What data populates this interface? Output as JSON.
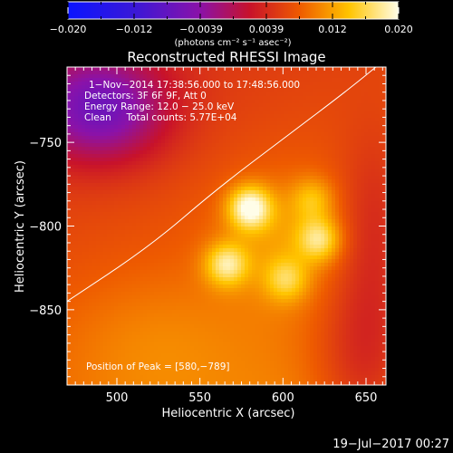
{
  "chart_data": {
    "type": "heatmap",
    "title": "Reconstructed RHESSI Image",
    "xlabel": "Heliocentric X (arcsec)",
    "ylabel": "Heliocentric Y (arcsec)",
    "xlim": [
      470,
      662
    ],
    "ylim": [
      -895,
      -705
    ],
    "xticks": [
      500,
      550,
      600,
      650
    ],
    "yticks": [
      -750,
      -800,
      -850
    ],
    "colorbar": {
      "range": [
        -0.02,
        0.02
      ],
      "ticks": [
        "−0.020",
        "−0.012",
        "−0.0039",
        "0.0039",
        "0.012",
        "0.020"
      ],
      "label": "(photons cm⁻² s⁻¹ asec⁻²)"
    },
    "info": [
      "1−Nov−2014 17:38:56.000 to 17:48:56.000",
      "Detectors: 3F 6F 9F, Att 0",
      "Energy Range: 12.0 − 25.0 keV",
      "Clean     Total counts: 5.77E+04"
    ],
    "peak_text": "Position of Peak = [580,−789]",
    "peak": [
      580,
      -789
    ],
    "sources": [
      {
        "x": 580,
        "y": -789,
        "peak": 0.02
      },
      {
        "x": 622,
        "y": -808,
        "peak": 0.016
      },
      {
        "x": 566,
        "y": -823,
        "peak": 0.017
      },
      {
        "x": 602,
        "y": -832,
        "peak": 0.014
      },
      {
        "x": 618,
        "y": -784,
        "peak": 0.013
      }
    ],
    "limb_curve": [
      [
        470,
        -845
      ],
      [
        520,
        -812
      ],
      [
        560,
        -778
      ],
      [
        600,
        -748
      ],
      [
        640,
        -718
      ],
      [
        662,
        -700
      ]
    ],
    "footer": "19−Jul−2017 00:27"
  }
}
